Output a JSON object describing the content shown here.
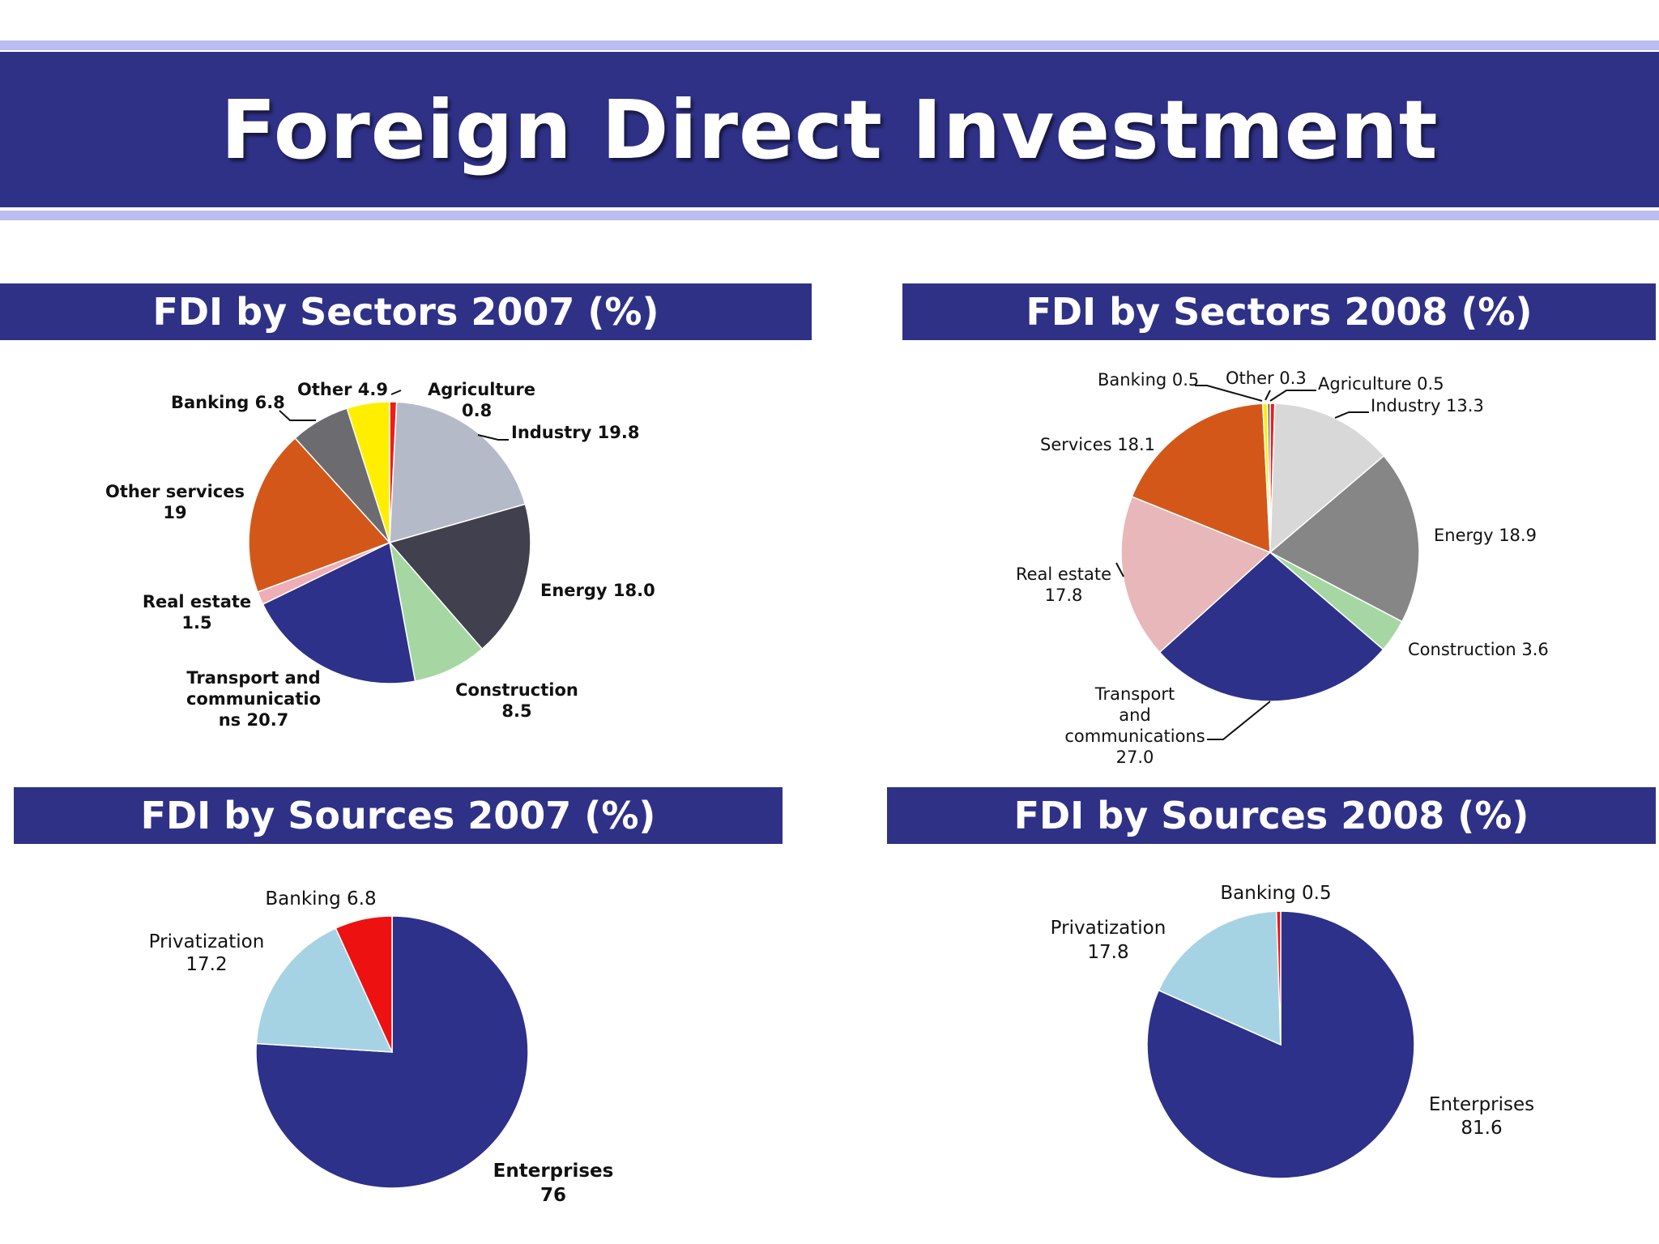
{
  "page": {
    "title": "Foreign Direct Investment"
  },
  "chart_data": [
    {
      "type": "pie",
      "title": "FDI by Sectors 2007 (%)",
      "slices": [
        {
          "name": "Agriculture",
          "value": 0.8,
          "display": "0.8",
          "color": "#ee1c1c"
        },
        {
          "name": "Industry",
          "value": 19.8,
          "display": "19.8",
          "color": "#b5bac9"
        },
        {
          "name": "Energy",
          "value": 18.0,
          "display": "18.0",
          "color": "#40404e"
        },
        {
          "name": "Construction",
          "value": 8.5,
          "display": "8.5",
          "color": "#a6d7a3"
        },
        {
          "name": "Transport and communications",
          "value": 20.7,
          "display": "20.7",
          "color": "#2d3189"
        },
        {
          "name": "Real estate",
          "value": 1.5,
          "display": "1.5",
          "color": "#efadb6"
        },
        {
          "name": "Other services",
          "value": 19,
          "display": "19",
          "color": "#d4571a"
        },
        {
          "name": "Banking",
          "value": 6.8,
          "display": "6.8",
          "color": "#6b6b70"
        },
        {
          "name": "Other",
          "value": 4.9,
          "display": "4.9",
          "color": "#ffee00"
        }
      ]
    },
    {
      "type": "pie",
      "title": "FDI by Sectors 2008 (%)",
      "slices": [
        {
          "name": "Agriculture",
          "value": 0.5,
          "display": "0.5",
          "color": "#ee1c1c"
        },
        {
          "name": "Industry",
          "value": 13.3,
          "display": "13.3",
          "color": "#d8d8d8"
        },
        {
          "name": "Energy",
          "value": 18.9,
          "display": "18.9",
          "color": "#868686"
        },
        {
          "name": "Construction",
          "value": 3.6,
          "display": "3.6",
          "color": "#a6d7a3"
        },
        {
          "name": "Transport and communications",
          "value": 27.0,
          "display": "27.0",
          "color": "#2d3189"
        },
        {
          "name": "Real estate",
          "value": 17.8,
          "display": "17.8",
          "color": "#e8b7b9"
        },
        {
          "name": "Services",
          "value": 18.1,
          "display": "18.1",
          "color": "#d4571a"
        },
        {
          "name": "Banking",
          "value": 0.5,
          "display": "0.5",
          "color": "#ffee00"
        },
        {
          "name": "Other",
          "value": 0.3,
          "display": "0.3",
          "color": "#6b6b70"
        }
      ]
    },
    {
      "type": "pie",
      "title": "FDI by Sources 2007 (%)",
      "slices": [
        {
          "name": "Enterprises",
          "value": 76,
          "display": "76",
          "color": "#2d3189"
        },
        {
          "name": "Privatization",
          "value": 17.2,
          "display": "17.2",
          "color": "#a6d3e3"
        },
        {
          "name": "Banking",
          "value": 6.8,
          "display": "6.8",
          "color": "#ee1111"
        }
      ]
    },
    {
      "type": "pie",
      "title": "FDI by Sources 2008 (%)",
      "slices": [
        {
          "name": "Enterprises",
          "value": 81.6,
          "display": "81.6",
          "color": "#2d3189"
        },
        {
          "name": "Privatization",
          "value": 17.8,
          "display": "17.8",
          "color": "#a6d3e3"
        },
        {
          "name": "Banking",
          "value": 0.5,
          "display": "0.5",
          "color": "#ee1111"
        }
      ]
    }
  ],
  "labels": {
    "s07": {
      "agri_name": "Agriculture",
      "agri_val": "0.8",
      "industry": "Industry 19.8",
      "energy": "Energy  18.0",
      "constr_name": "Construction",
      "constr_val": "8.5",
      "transport_1": "Transport and",
      "transport_2": "communicatio",
      "transport_3": "ns  20.7",
      "realestate_name": "Real estate",
      "realestate_val": "1.5",
      "otherserv_name": "Other services",
      "otherserv_val": "19",
      "banking": "Banking  6.8",
      "other": "Other  4.9"
    },
    "s08": {
      "banking": "Banking 0.5",
      "other": "Other 0.3",
      "agri": "Agriculture 0.5",
      "industry": "Industry  13.3",
      "services": "Services 18.1",
      "energy": "Energy  18.9",
      "realestate_name": "Real estate",
      "realestate_val": "17.8",
      "constr": "Construction 3.6",
      "transport_1": "Transport",
      "transport_2": "and",
      "transport_3": "communications",
      "transport_4": "27.0"
    },
    "src07": {
      "banking": "Banking 6.8",
      "priv_name": "Privatization",
      "priv_val": "17.2",
      "ent_name": "Enterprises",
      "ent_val": "76"
    },
    "src08": {
      "banking": "Banking 0.5",
      "priv_name": "Privatization",
      "priv_val": "17.8",
      "ent_name": "Enterprises",
      "ent_val": "81.6"
    }
  }
}
